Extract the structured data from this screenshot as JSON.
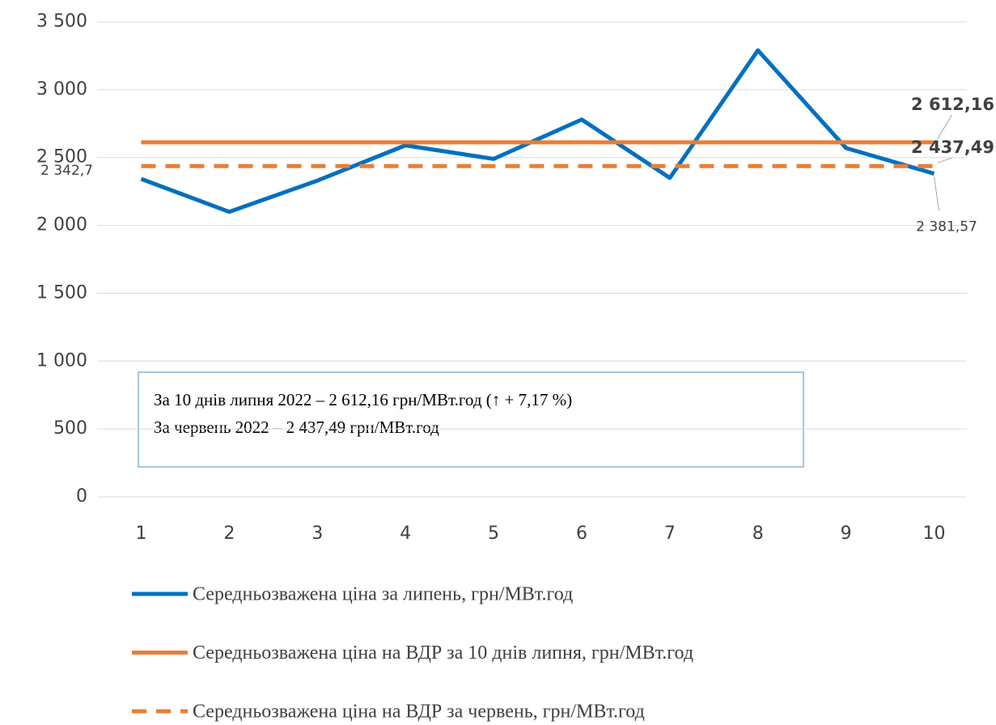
{
  "chart_data": {
    "type": "line",
    "categories": [
      "1",
      "2",
      "3",
      "4",
      "5",
      "6",
      "7",
      "8",
      "9",
      "10"
    ],
    "ylim": [
      0,
      3500
    ],
    "yticks": [
      0,
      500,
      {
        "value": 1000,
        "label": "1 000"
      },
      {
        "value": 1500,
        "label": "1 500"
      },
      {
        "value": 2000,
        "label": "2 000"
      },
      {
        "value": 2500,
        "label": "2 500"
      },
      {
        "value": 3000,
        "label": "3 000"
      },
      {
        "value": 3500,
        "label": "3 500"
      }
    ],
    "grid": true,
    "series": [
      {
        "name": "Середньозважена ціна за липень, грн/МВт.год",
        "color": "#0070c0",
        "dash": false,
        "values": [
          2342.7,
          2100,
          2330,
          2590,
          2490,
          2780,
          2350,
          3290,
          2570,
          2381.57
        ],
        "value_labels": [
          "2 342,7",
          null,
          null,
          null,
          null,
          null,
          null,
          null,
          null,
          "2 381,57"
        ]
      },
      {
        "name": "Середньозважена ціна на ВДР за 10 днів липня, грн/МВт.год",
        "color": "#ed7d31",
        "dash": false,
        "values": [
          2612.16,
          2612.16,
          2612.16,
          2612.16,
          2612.16,
          2612.16,
          2612.16,
          2612.16,
          2612.16,
          2612.16
        ],
        "value_labels": [
          null,
          null,
          null,
          null,
          null,
          null,
          null,
          null,
          null,
          "2 612,16"
        ]
      },
      {
        "name": "Середньозважена ціна на ВДР за червень, грн/МВт.год",
        "color": "#ed7d31",
        "dash": true,
        "values": [
          2437.49,
          2437.49,
          2437.49,
          2437.49,
          2437.49,
          2437.49,
          2437.49,
          2437.49,
          2437.49,
          2437.49
        ],
        "value_labels": [
          null,
          null,
          null,
          null,
          null,
          null,
          null,
          null,
          null,
          "2 437,49"
        ]
      }
    ],
    "annotations": [
      "За 10 днів липня 2022 – 2 612,16 грн/МВт.год (↑ + 7,17 %)",
      "За червень 2022 – 2 437,49 грн/МВт.год"
    ]
  }
}
